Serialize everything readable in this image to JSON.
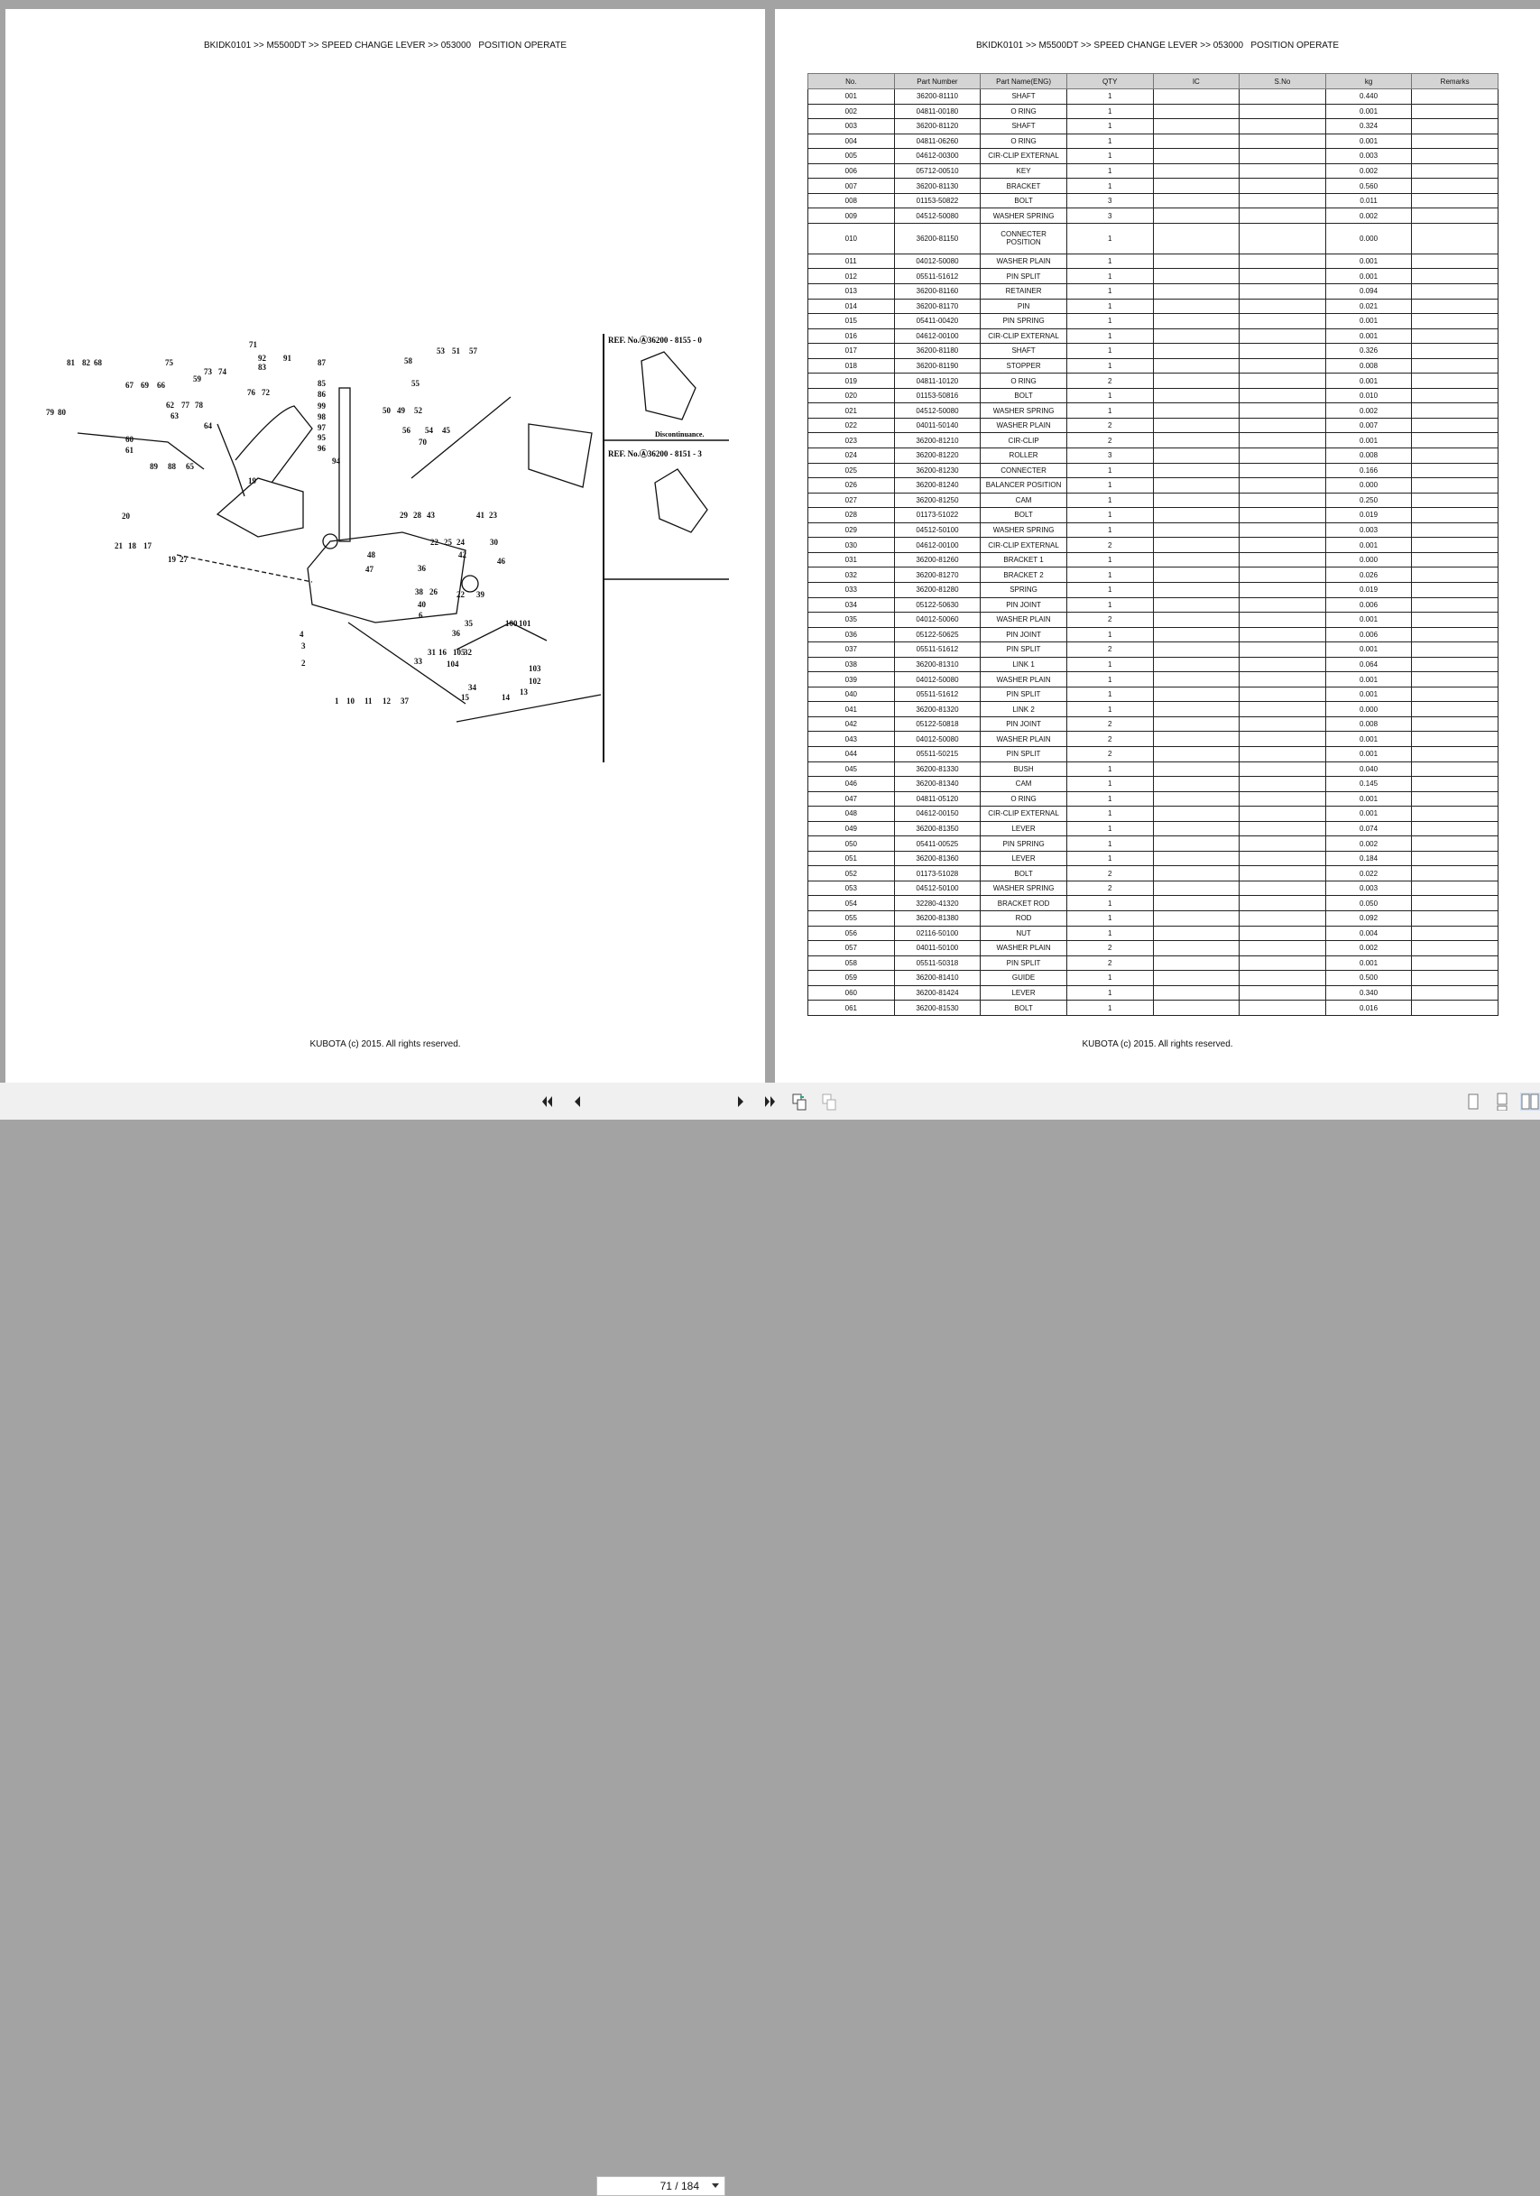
{
  "left_page": {
    "header": "BKIDK0101 >> M5500DT >> SPEED CHANGE LEVER >> 053000   POSITION OPERATE",
    "footer": "KUBOTA (c) 2015. All rights reserved.",
    "diagram": {
      "ref1": "REF. No.Ⓐ36200 - 8155 - 0",
      "ref1_note": "Discontinuance.",
      "ref2": "REF. No.Ⓐ36200 - 8151 - 3",
      "callouts": [
        "71",
        "75",
        "81",
        "82",
        "68",
        "67",
        "69",
        "66",
        "79",
        "80",
        "62",
        "77",
        "78",
        "63",
        "64",
        "60",
        "61",
        "65",
        "89",
        "88",
        "73",
        "74",
        "76",
        "72",
        "59",
        "92",
        "83",
        "91",
        "87",
        "85",
        "86",
        "99",
        "98",
        "97",
        "95",
        "96",
        "94",
        "58",
        "50",
        "49",
        "52",
        "53",
        "51",
        "57",
        "55",
        "56",
        "54",
        "45",
        "70",
        "19",
        "20",
        "21",
        "18",
        "17",
        "19",
        "27",
        "29",
        "28",
        "43",
        "41",
        "23",
        "22",
        "25",
        "24",
        "42",
        "30",
        "46",
        "48",
        "47",
        "36",
        "38",
        "26",
        "22",
        "39",
        "40",
        "6",
        "4",
        "3",
        "2",
        "1",
        "10",
        "11",
        "12",
        "37",
        "35",
        "36",
        "32",
        "33",
        "31",
        "16",
        "105",
        "104",
        "100",
        "101",
        "103",
        "102",
        "13",
        "14",
        "15",
        "34"
      ]
    }
  },
  "right_page": {
    "header": "BKIDK0101 >> M5500DT >> SPEED CHANGE LEVER >> 053000   POSITION OPERATE",
    "footer": "KUBOTA (c) 2015. All rights reserved.",
    "columns": [
      "No.",
      "Part Number",
      "Part Name(ENG)",
      "QTY",
      "IC",
      "S.No",
      "kg",
      "Remarks"
    ],
    "rows": [
      [
        "001",
        "36200-81110",
        "SHAFT",
        "1",
        "",
        "",
        "0.440",
        ""
      ],
      [
        "002",
        "04811-00180",
        "O RING",
        "1",
        "",
        "",
        "0.001",
        ""
      ],
      [
        "003",
        "36200-81120",
        "SHAFT",
        "1",
        "",
        "",
        "0.324",
        ""
      ],
      [
        "004",
        "04811-06260",
        "O RING",
        "1",
        "",
        "",
        "0.001",
        ""
      ],
      [
        "005",
        "04612-00300",
        "CIR-CLIP EXTERNAL",
        "1",
        "",
        "",
        "0.003",
        ""
      ],
      [
        "006",
        "05712-00510",
        "KEY",
        "1",
        "",
        "",
        "0.002",
        ""
      ],
      [
        "007",
        "36200-81130",
        "BRACKET",
        "1",
        "",
        "",
        "0.560",
        ""
      ],
      [
        "008",
        "01153-50822",
        "BOLT",
        "3",
        "",
        "",
        "0.011",
        ""
      ],
      [
        "009",
        "04512-50080",
        "WASHER SPRING",
        "3",
        "",
        "",
        "0.002",
        ""
      ],
      [
        "010",
        "36200-81150",
        "CONNECTER POSITION",
        "1",
        "",
        "",
        "0.000",
        ""
      ],
      [
        "011",
        "04012-50080",
        "WASHER PLAIN",
        "1",
        "",
        "",
        "0.001",
        ""
      ],
      [
        "012",
        "05511-51612",
        "PIN SPLIT",
        "1",
        "",
        "",
        "0.001",
        ""
      ],
      [
        "013",
        "36200-81160",
        "RETAINER",
        "1",
        "",
        "",
        "0.094",
        ""
      ],
      [
        "014",
        "36200-81170",
        "PIN",
        "1",
        "",
        "",
        "0.021",
        ""
      ],
      [
        "015",
        "05411-00420",
        "PIN SPRING",
        "1",
        "",
        "",
        "0.001",
        ""
      ],
      [
        "016",
        "04612-00100",
        "CIR-CLIP EXTERNAL",
        "1",
        "",
        "",
        "0.001",
        ""
      ],
      [
        "017",
        "36200-81180",
        "SHAFT",
        "1",
        "",
        "",
        "0.326",
        ""
      ],
      [
        "018",
        "36200-81190",
        "STOPPER",
        "1",
        "",
        "",
        "0.008",
        ""
      ],
      [
        "019",
        "04811-10120",
        "O RING",
        "2",
        "",
        "",
        "0.001",
        ""
      ],
      [
        "020",
        "01153-50816",
        "BOLT",
        "1",
        "",
        "",
        "0.010",
        ""
      ],
      [
        "021",
        "04512-50080",
        "WASHER SPRING",
        "1",
        "",
        "",
        "0.002",
        ""
      ],
      [
        "022",
        "04011-50140",
        "WASHER PLAIN",
        "2",
        "",
        "",
        "0.007",
        ""
      ],
      [
        "023",
        "36200-81210",
        "CIR-CLIP",
        "2",
        "",
        "",
        "0.001",
        ""
      ],
      [
        "024",
        "36200-81220",
        "ROLLER",
        "3",
        "",
        "",
        "0.008",
        ""
      ],
      [
        "025",
        "36200-81230",
        "CONNECTER",
        "1",
        "",
        "",
        "0.166",
        ""
      ],
      [
        "026",
        "36200-81240",
        "BALANCER POSITION",
        "1",
        "",
        "",
        "0.000",
        ""
      ],
      [
        "027",
        "36200-81250",
        "CAM",
        "1",
        "",
        "",
        "0.250",
        ""
      ],
      [
        "028",
        "01173-51022",
        "BOLT",
        "1",
        "",
        "",
        "0.019",
        ""
      ],
      [
        "029",
        "04512-50100",
        "WASHER SPRING",
        "1",
        "",
        "",
        "0.003",
        ""
      ],
      [
        "030",
        "04612-00100",
        "CIR-CLIP EXTERNAL",
        "2",
        "",
        "",
        "0.001",
        ""
      ],
      [
        "031",
        "36200-81260",
        "BRACKET 1",
        "1",
        "",
        "",
        "0.000",
        ""
      ],
      [
        "032",
        "36200-81270",
        "BRACKET 2",
        "1",
        "",
        "",
        "0.026",
        ""
      ],
      [
        "033",
        "36200-81280",
        "SPRING",
        "1",
        "",
        "",
        "0.019",
        ""
      ],
      [
        "034",
        "05122-50630",
        "PIN JOINT",
        "1",
        "",
        "",
        "0.006",
        ""
      ],
      [
        "035",
        "04012-50060",
        "WASHER PLAIN",
        "2",
        "",
        "",
        "0.001",
        ""
      ],
      [
        "036",
        "05122-50625",
        "PIN JOINT",
        "1",
        "",
        "",
        "0.006",
        ""
      ],
      [
        "037",
        "05511-51612",
        "PIN SPLIT",
        "2",
        "",
        "",
        "0.001",
        ""
      ],
      [
        "038",
        "36200-81310",
        "LINK 1",
        "1",
        "",
        "",
        "0.064",
        ""
      ],
      [
        "039",
        "04012-50080",
        "WASHER PLAIN",
        "1",
        "",
        "",
        "0.001",
        ""
      ],
      [
        "040",
        "05511-51612",
        "PIN SPLIT",
        "1",
        "",
        "",
        "0.001",
        ""
      ],
      [
        "041",
        "36200-81320",
        "LINK 2",
        "1",
        "",
        "",
        "0.000",
        ""
      ],
      [
        "042",
        "05122-50818",
        "PIN JOINT",
        "2",
        "",
        "",
        "0.008",
        ""
      ],
      [
        "043",
        "04012-50080",
        "WASHER PLAIN",
        "2",
        "",
        "",
        "0.001",
        ""
      ],
      [
        "044",
        "05511-50215",
        "PIN SPLIT",
        "2",
        "",
        "",
        "0.001",
        ""
      ],
      [
        "045",
        "36200-81330",
        "BUSH",
        "1",
        "",
        "",
        "0.040",
        ""
      ],
      [
        "046",
        "36200-81340",
        "CAM",
        "1",
        "",
        "",
        "0.145",
        ""
      ],
      [
        "047",
        "04811-05120",
        "O RING",
        "1",
        "",
        "",
        "0.001",
        ""
      ],
      [
        "048",
        "04612-00150",
        "CIR-CLIP EXTERNAL",
        "1",
        "",
        "",
        "0.001",
        ""
      ],
      [
        "049",
        "36200-81350",
        "LEVER",
        "1",
        "",
        "",
        "0.074",
        ""
      ],
      [
        "050",
        "05411-00525",
        "PIN SPRING",
        "1",
        "",
        "",
        "0.002",
        ""
      ],
      [
        "051",
        "36200-81360",
        "LEVER",
        "1",
        "",
        "",
        "0.184",
        ""
      ],
      [
        "052",
        "01173-51028",
        "BOLT",
        "2",
        "",
        "",
        "0.022",
        ""
      ],
      [
        "053",
        "04512-50100",
        "WASHER SPRING",
        "2",
        "",
        "",
        "0.003",
        ""
      ],
      [
        "054",
        "32280-41320",
        "BRACKET ROD",
        "1",
        "",
        "",
        "0.050",
        ""
      ],
      [
        "055",
        "36200-81380",
        "ROD",
        "1",
        "",
        "",
        "0.092",
        ""
      ],
      [
        "056",
        "02116-50100",
        "NUT",
        "1",
        "",
        "",
        "0.004",
        ""
      ],
      [
        "057",
        "04011-50100",
        "WASHER PLAIN",
        "2",
        "",
        "",
        "0.002",
        ""
      ],
      [
        "058",
        "05511-50318",
        "PIN SPLIT",
        "2",
        "",
        "",
        "0.001",
        ""
      ],
      [
        "059",
        "36200-81410",
        "GUIDE",
        "1",
        "",
        "",
        "0.500",
        ""
      ],
      [
        "060",
        "36200-81424",
        "LEVER",
        "1",
        "",
        "",
        "0.340",
        ""
      ],
      [
        "061",
        "36200-81530",
        "BOLT",
        "1",
        "",
        "",
        "0.016",
        ""
      ]
    ]
  },
  "toolbar": {
    "page_indicator": "71 / 184",
    "buttons": [
      "first-page-icon",
      "previous-page-icon",
      "next-page-icon",
      "last-page-icon",
      "back-view-icon",
      "forward-view-icon",
      "single-page-icon",
      "continuous-page-icon",
      "two-page-icon"
    ],
    "active_view": "two-page-icon"
  }
}
